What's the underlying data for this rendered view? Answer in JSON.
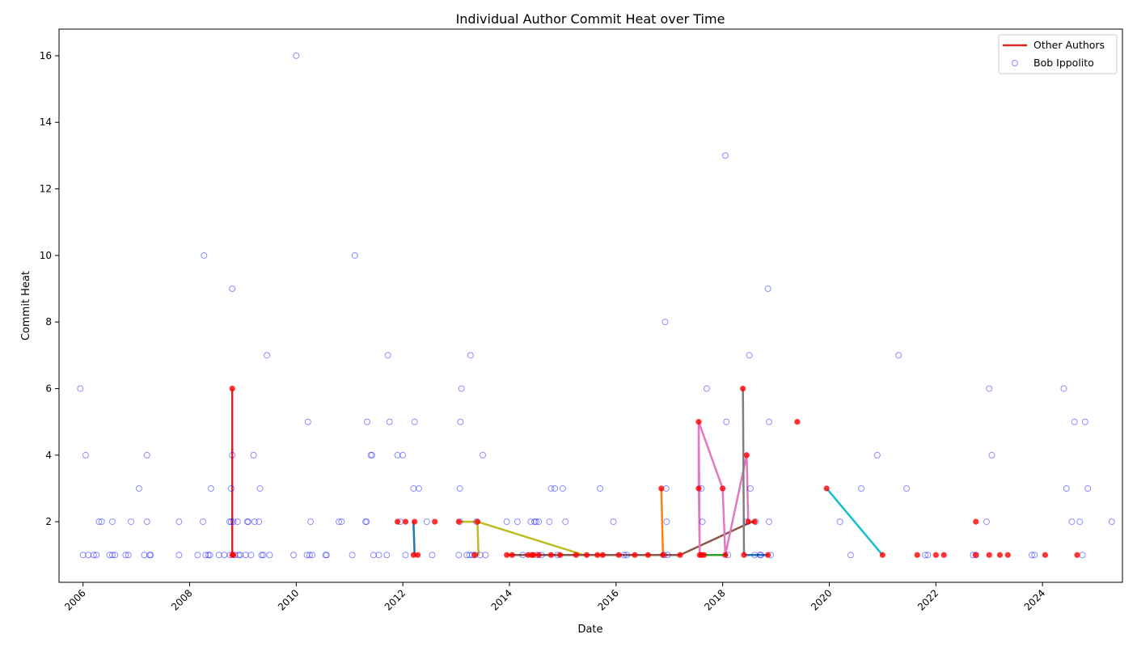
{
  "chart_data": {
    "type": "scatter",
    "title": "Individual Author Commit Heat over Time",
    "xlabel": "Date",
    "ylabel": "Commit Heat",
    "xlim": [
      2005.55,
      2025.5
    ],
    "ylim": [
      0.18,
      16.8
    ],
    "x_ticks": [
      "2006",
      "2008",
      "2010",
      "2012",
      "2014",
      "2016",
      "2018",
      "2020",
      "2022",
      "2024"
    ],
    "y_ticks": [
      "2",
      "4",
      "6",
      "8",
      "10",
      "12",
      "14",
      "16"
    ],
    "legend": {
      "position": "top-right",
      "entries": [
        {
          "label": "Other Authors",
          "kind": "line",
          "color": "#d62728"
        },
        {
          "label": "Bob Ippolito",
          "kind": "marker",
          "color": "#0000ff"
        }
      ]
    },
    "bob_points": [
      [
        2005.95,
        6
      ],
      [
        2006.0,
        1
      ],
      [
        2006.05,
        4
      ],
      [
        2006.1,
        1
      ],
      [
        2006.2,
        1
      ],
      [
        2006.25,
        1
      ],
      [
        2006.3,
        2
      ],
      [
        2006.35,
        2
      ],
      [
        2006.5,
        1
      ],
      [
        2006.55,
        1
      ],
      [
        2006.55,
        2
      ],
      [
        2006.6,
        1
      ],
      [
        2006.8,
        1
      ],
      [
        2006.85,
        1
      ],
      [
        2006.9,
        2
      ],
      [
        2007.05,
        3
      ],
      [
        2007.15,
        1
      ],
      [
        2007.2,
        2
      ],
      [
        2007.2,
        4
      ],
      [
        2007.25,
        1
      ],
      [
        2007.27,
        1
      ],
      [
        2007.8,
        1
      ],
      [
        2007.8,
        2
      ],
      [
        2008.15,
        1
      ],
      [
        2008.25,
        2
      ],
      [
        2008.27,
        10
      ],
      [
        2008.3,
        1
      ],
      [
        2008.35,
        1
      ],
      [
        2008.38,
        1
      ],
      [
        2008.4,
        3
      ],
      [
        2008.55,
        1
      ],
      [
        2008.65,
        1
      ],
      [
        2008.75,
        2
      ],
      [
        2008.76,
        1
      ],
      [
        2008.78,
        2
      ],
      [
        2008.78,
        3
      ],
      [
        2008.8,
        4
      ],
      [
        2008.8,
        9
      ],
      [
        2008.82,
        2
      ],
      [
        2008.85,
        1
      ],
      [
        2008.9,
        2
      ],
      [
        2008.92,
        1
      ],
      [
        2008.95,
        1
      ],
      [
        2009.05,
        1
      ],
      [
        2009.08,
        2
      ],
      [
        2009.1,
        2
      ],
      [
        2009.15,
        1
      ],
      [
        2009.2,
        4
      ],
      [
        2009.22,
        2
      ],
      [
        2009.3,
        2
      ],
      [
        2009.32,
        3
      ],
      [
        2009.35,
        1
      ],
      [
        2009.38,
        1
      ],
      [
        2009.45,
        7
      ],
      [
        2009.5,
        1
      ],
      [
        2009.95,
        1
      ],
      [
        2010.0,
        16
      ],
      [
        2010.2,
        1
      ],
      [
        2010.22,
        5
      ],
      [
        2010.25,
        1
      ],
      [
        2010.27,
        2
      ],
      [
        2010.3,
        1
      ],
      [
        2010.55,
        1
      ],
      [
        2010.57,
        1
      ],
      [
        2010.8,
        2
      ],
      [
        2010.85,
        2
      ],
      [
        2011.05,
        1
      ],
      [
        2011.1,
        10
      ],
      [
        2011.3,
        2
      ],
      [
        2011.32,
        2
      ],
      [
        2011.33,
        5
      ],
      [
        2011.4,
        4
      ],
      [
        2011.42,
        4
      ],
      [
        2011.45,
        1
      ],
      [
        2011.55,
        1
      ],
      [
        2011.7,
        1
      ],
      [
        2011.72,
        7
      ],
      [
        2011.75,
        5
      ],
      [
        2011.9,
        4
      ],
      [
        2011.95,
        2
      ],
      [
        2012.0,
        4
      ],
      [
        2012.05,
        1
      ],
      [
        2012.2,
        3
      ],
      [
        2012.22,
        5
      ],
      [
        2012.3,
        3
      ],
      [
        2012.45,
        2
      ],
      [
        2012.55,
        1
      ],
      [
        2013.05,
        1
      ],
      [
        2013.07,
        2
      ],
      [
        2013.07,
        3
      ],
      [
        2013.08,
        5
      ],
      [
        2013.1,
        6
      ],
      [
        2013.2,
        1
      ],
      [
        2013.25,
        1
      ],
      [
        2013.27,
        7
      ],
      [
        2013.3,
        1
      ],
      [
        2013.35,
        1
      ],
      [
        2013.38,
        2
      ],
      [
        2013.45,
        1
      ],
      [
        2013.5,
        4
      ],
      [
        2013.55,
        1
      ],
      [
        2013.95,
        2
      ],
      [
        2014.15,
        2
      ],
      [
        2014.25,
        1
      ],
      [
        2014.4,
        2
      ],
      [
        2014.47,
        2
      ],
      [
        2014.5,
        2
      ],
      [
        2014.52,
        1
      ],
      [
        2014.55,
        2
      ],
      [
        2014.6,
        1
      ],
      [
        2014.75,
        2
      ],
      [
        2014.78,
        3
      ],
      [
        2014.85,
        3
      ],
      [
        2014.9,
        1
      ],
      [
        2015.0,
        3
      ],
      [
        2015.05,
        2
      ],
      [
        2015.7,
        3
      ],
      [
        2015.95,
        2
      ],
      [
        2016.15,
        1
      ],
      [
        2016.2,
        1
      ],
      [
        2016.9,
        1
      ],
      [
        2016.92,
        8
      ],
      [
        2016.94,
        3
      ],
      [
        2016.95,
        2
      ],
      [
        2016.97,
        1
      ],
      [
        2017.6,
        3
      ],
      [
        2017.62,
        2
      ],
      [
        2017.7,
        6
      ],
      [
        2018.05,
        13
      ],
      [
        2018.07,
        5
      ],
      [
        2018.1,
        1
      ],
      [
        2018.45,
        2
      ],
      [
        2018.5,
        7
      ],
      [
        2018.52,
        3
      ],
      [
        2018.6,
        1
      ],
      [
        2018.62,
        2
      ],
      [
        2018.7,
        1
      ],
      [
        2018.72,
        1
      ],
      [
        2018.85,
        9
      ],
      [
        2018.87,
        5
      ],
      [
        2018.87,
        2
      ],
      [
        2018.9,
        1
      ],
      [
        2020.2,
        2
      ],
      [
        2020.4,
        1
      ],
      [
        2020.6,
        3
      ],
      [
        2020.9,
        4
      ],
      [
        2021.3,
        7
      ],
      [
        2021.45,
        3
      ],
      [
        2021.8,
        1
      ],
      [
        2021.85,
        1
      ],
      [
        2022.7,
        1
      ],
      [
        2022.75,
        1
      ],
      [
        2022.95,
        2
      ],
      [
        2023.0,
        6
      ],
      [
        2023.05,
        4
      ],
      [
        2023.8,
        1
      ],
      [
        2023.85,
        1
      ],
      [
        2024.4,
        6
      ],
      [
        2024.45,
        3
      ],
      [
        2024.55,
        2
      ],
      [
        2024.6,
        5
      ],
      [
        2024.7,
        2
      ],
      [
        2024.75,
        1
      ],
      [
        2024.8,
        5
      ],
      [
        2024.85,
        3
      ],
      [
        2025.3,
        2
      ]
    ],
    "other_author_points": [
      [
        2008.8,
        6
      ],
      [
        2008.8,
        1
      ],
      [
        2008.82,
        1
      ],
      [
        2011.9,
        2
      ],
      [
        2012.05,
        2
      ],
      [
        2012.2,
        1
      ],
      [
        2012.22,
        2
      ],
      [
        2012.28,
        1
      ],
      [
        2012.6,
        2
      ],
      [
        2013.05,
        2
      ],
      [
        2013.35,
        1
      ],
      [
        2013.4,
        2
      ],
      [
        2013.95,
        1
      ],
      [
        2014.05,
        1
      ],
      [
        2014.35,
        1
      ],
      [
        2014.42,
        1
      ],
      [
        2014.45,
        1
      ],
      [
        2014.55,
        1
      ],
      [
        2014.78,
        1
      ],
      [
        2014.95,
        1
      ],
      [
        2015.25,
        1
      ],
      [
        2015.45,
        1
      ],
      [
        2015.65,
        1
      ],
      [
        2015.75,
        1
      ],
      [
        2016.05,
        1
      ],
      [
        2016.35,
        1
      ],
      [
        2016.6,
        1
      ],
      [
        2016.85,
        3
      ],
      [
        2016.88,
        1
      ],
      [
        2017.2,
        1
      ],
      [
        2017.55,
        5
      ],
      [
        2017.55,
        3
      ],
      [
        2017.57,
        1
      ],
      [
        2017.6,
        1
      ],
      [
        2017.65,
        1
      ],
      [
        2018.0,
        3
      ],
      [
        2018.05,
        1
      ],
      [
        2018.38,
        6
      ],
      [
        2018.4,
        1
      ],
      [
        2018.45,
        4
      ],
      [
        2018.48,
        2
      ],
      [
        2018.6,
        2
      ],
      [
        2018.85,
        1
      ],
      [
        2019.4,
        5
      ],
      [
        2019.95,
        3
      ],
      [
        2021.0,
        1
      ],
      [
        2021.65,
        1
      ],
      [
        2022.0,
        1
      ],
      [
        2022.15,
        1
      ],
      [
        2022.75,
        2
      ],
      [
        2022.75,
        1
      ],
      [
        2023.0,
        1
      ],
      [
        2023.2,
        1
      ],
      [
        2023.35,
        1
      ],
      [
        2024.05,
        1
      ],
      [
        2024.65,
        1
      ]
    ],
    "other_author_series": [
      {
        "color": "#d62728",
        "points": [
          [
            2008.8,
            6
          ],
          [
            2008.8,
            1
          ],
          [
            2008.82,
            1
          ]
        ]
      },
      {
        "color": "#1f77b4",
        "points": [
          [
            2012.2,
            2
          ],
          [
            2012.22,
            1
          ],
          [
            2012.28,
            1
          ]
        ]
      },
      {
        "color": "#bcbd22",
        "points": [
          [
            2013.05,
            2
          ],
          [
            2013.4,
            2
          ],
          [
            2013.42,
            1
          ],
          [
            2013.4,
            2
          ],
          [
            2015.4,
            1
          ]
        ]
      },
      {
        "color": "#ff7f0e",
        "points": [
          [
            2016.85,
            3
          ],
          [
            2016.88,
            1
          ],
          [
            2016.9,
            1
          ]
        ]
      },
      {
        "color": "#8c564b",
        "points": [
          [
            2013.95,
            1
          ],
          [
            2017.2,
            1
          ],
          [
            2018.55,
            2
          ],
          [
            2018.6,
            2
          ]
        ]
      },
      {
        "color": "#e377c2",
        "points": [
          [
            2017.55,
            5
          ],
          [
            2017.55,
            3
          ],
          [
            2017.57,
            1
          ],
          [
            2017.55,
            5
          ],
          [
            2018.0,
            3
          ],
          [
            2018.05,
            1
          ],
          [
            2018.45,
            4
          ],
          [
            2018.48,
            2
          ]
        ]
      },
      {
        "color": "#7f7f7f",
        "points": [
          [
            2018.38,
            6
          ],
          [
            2018.4,
            1
          ]
        ]
      },
      {
        "color": "#2ca02c",
        "points": [
          [
            2017.6,
            1
          ],
          [
            2018.1,
            1
          ]
        ]
      },
      {
        "color": "#17becf",
        "points": [
          [
            2019.95,
            3
          ],
          [
            2021.0,
            1
          ]
        ]
      },
      {
        "color": "#1f77b4",
        "points": [
          [
            2018.4,
            1
          ],
          [
            2018.85,
            1
          ]
        ]
      }
    ]
  }
}
